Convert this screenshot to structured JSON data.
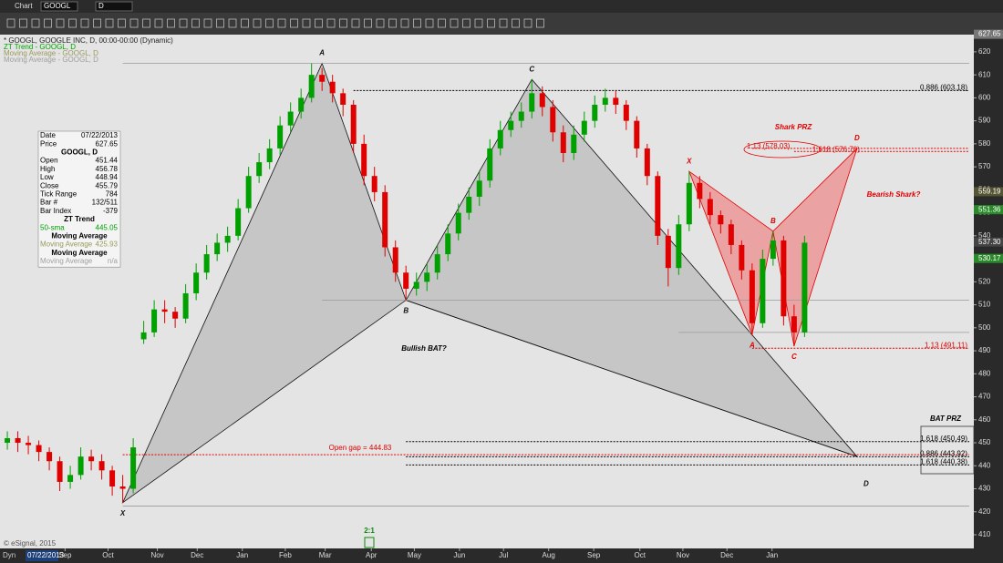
{
  "window": {
    "title": "Chart",
    "symbol": "GOOGL",
    "interval": "D"
  },
  "legend": [
    {
      "text": "* GOOGL, GOOGLE INC, D, 00:00-00:00 (Dynamic)",
      "color": "#222222"
    },
    {
      "text": "ZT Trend - GOOGL, D",
      "color": "#00a000"
    },
    {
      "text": "Moving Average - GOOGL, D",
      "color": "#9a9a5a"
    },
    {
      "text": "Moving Average - GOOGL, D",
      "color": "#a0a0a0"
    }
  ],
  "data_window": {
    "rows": [
      [
        "Date",
        "07/22/2013"
      ],
      [
        "Price",
        627.65
      ],
      [
        "GOOGL, D"
      ],
      [
        "Open",
        451.44
      ],
      [
        "High",
        456.78
      ],
      [
        "Low",
        448.94
      ],
      [
        "Close",
        455.79
      ],
      [
        "Tick Range",
        784
      ],
      [
        "Bar #",
        "132/511"
      ],
      [
        "Bar Index",
        -379
      ],
      [
        "ZT Trend"
      ],
      [
        "50-sma",
        445.05
      ],
      [
        "Moving Average"
      ],
      [
        "Moving Average",
        425.93
      ],
      [
        "Moving Average"
      ],
      [
        "Moving Average",
        "n/a"
      ]
    ]
  },
  "chart_data": {
    "type": "candlestick",
    "candles": {
      "open": [
        450,
        452,
        450,
        449,
        446,
        442,
        433,
        436,
        444,
        442,
        438,
        431,
        430,
        495,
        498,
        508,
        507,
        504,
        515,
        524,
        532,
        537,
        540,
        552,
        566,
        572,
        578,
        588,
        594,
        600,
        610,
        607,
        602,
        597,
        580,
        566,
        559,
        535,
        524,
        517,
        520,
        524,
        532,
        541,
        550,
        557,
        564,
        578,
        586,
        590,
        594,
        602,
        596,
        585,
        576,
        584,
        590,
        597,
        600,
        597,
        590,
        578,
        566,
        540,
        526,
        545,
        563,
        556,
        549,
        545,
        536,
        525,
        502,
        530,
        538,
        505,
        498
      ],
      "high": [
        455,
        455,
        453,
        451,
        448,
        444,
        440,
        448,
        447,
        445,
        440,
        436,
        452,
        503,
        512,
        512,
        509,
        519,
        528,
        536,
        541,
        544,
        556,
        570,
        576,
        582,
        592,
        598,
        604,
        615,
        613,
        610,
        604,
        599,
        584,
        570,
        562,
        538,
        527,
        524,
        528,
        536,
        545,
        554,
        561,
        568,
        582,
        590,
        594,
        598,
        608,
        605,
        599,
        588,
        588,
        594,
        601,
        604,
        603,
        599,
        592,
        580,
        568,
        543,
        549,
        568,
        566,
        559,
        551,
        547,
        538,
        528,
        534,
        542,
        540,
        510,
        540
      ],
      "low": [
        447,
        446,
        445,
        442,
        438,
        429,
        430,
        434,
        438,
        434,
        427,
        424,
        428,
        493,
        496,
        502,
        500,
        502,
        512,
        521,
        529,
        533,
        538,
        550,
        563,
        569,
        575,
        585,
        591,
        598,
        603,
        598,
        592,
        576,
        562,
        555,
        531,
        520,
        512,
        514,
        516,
        521,
        529,
        538,
        547,
        553,
        561,
        575,
        583,
        587,
        591,
        592,
        581,
        572,
        573,
        581,
        587,
        594,
        593,
        586,
        574,
        562,
        536,
        518,
        523,
        542,
        552,
        545,
        541,
        532,
        521,
        497,
        500,
        527,
        501,
        492,
        496
      ],
      "close": [
        452,
        450,
        449,
        446,
        442,
        433,
        436,
        444,
        442,
        438,
        431,
        430,
        448,
        498,
        508,
        507,
        504,
        515,
        524,
        532,
        537,
        540,
        552,
        566,
        572,
        578,
        588,
        594,
        600,
        610,
        607,
        602,
        597,
        580,
        566,
        559,
        535,
        524,
        517,
        520,
        524,
        532,
        541,
        550,
        557,
        564,
        578,
        586,
        590,
        594,
        602,
        596,
        585,
        576,
        584,
        590,
        597,
        600,
        597,
        590,
        578,
        566,
        540,
        526,
        545,
        563,
        556,
        549,
        545,
        536,
        525,
        502,
        530,
        538,
        505,
        498,
        537
      ]
    },
    "up_color": "#00a000",
    "down_color": "#e00000",
    "xlim": [
      -0.7,
      91.7
    ],
    "xticks": [
      {
        "value": 5.5,
        "label": "Sep"
      },
      {
        "value": 9.6,
        "label": "Oct"
      },
      {
        "value": 14.3,
        "label": "Nov"
      },
      {
        "value": 18.1,
        "label": "Dec"
      },
      {
        "value": 22.4,
        "label": "Jan"
      },
      {
        "value": 26.5,
        "label": "Feb"
      },
      {
        "value": 30.3,
        "label": "Mar"
      },
      {
        "value": 34.7,
        "label": "Apr"
      },
      {
        "value": 38.8,
        "label": "May"
      },
      {
        "value": 43.1,
        "label": "Jun"
      },
      {
        "value": 47.3,
        "label": "Jul"
      },
      {
        "value": 51.6,
        "label": "Aug"
      },
      {
        "value": 55.9,
        "label": "Sep"
      },
      {
        "value": 60.3,
        "label": "Oct"
      },
      {
        "value": 64.4,
        "label": "Nov"
      },
      {
        "value": 68.6,
        "label": "Dec"
      },
      {
        "value": 72.9,
        "label": "Jan"
      }
    ],
    "ylim": [
      404.06,
      626.7
    ],
    "yticks": [
      410,
      420,
      430,
      440,
      450,
      460,
      470,
      480,
      490,
      500,
      510,
      520,
      530,
      540,
      550,
      560,
      570,
      580,
      590,
      600,
      610,
      620
    ],
    "price_badges": [
      {
        "value": 627.65,
        "label": "627.65",
        "color": "#777777"
      },
      {
        "value": 559.19,
        "label": "559.19",
        "color": "#555533"
      },
      {
        "value": 551.36,
        "label": "551.36",
        "color": "#2a8a2a"
      },
      {
        "value": 537.3,
        "label": "537.30",
        "color": "#444444"
      },
      {
        "value": 530.17,
        "label": "530.17",
        "color": "#2a8a2a"
      }
    ],
    "levels": [
      {
        "value": 603.18,
        "from": 33,
        "color": "#000000",
        "dashed": true,
        "label": "0.886 (603.18)"
      },
      {
        "value": 578.03,
        "from": 71,
        "color": "#e00000",
        "dashed": true,
        "label": "1.13 (578.03)"
      },
      {
        "value": 576.7,
        "from": 75,
        "color": "#e00000",
        "dashed": true,
        "label": "1.618 (576.70)"
      },
      {
        "value": 491.11,
        "from": 71,
        "color": "#e00000",
        "dashed": true,
        "label": "1.13 (491.11)"
      },
      {
        "value": 450.49,
        "from": 38,
        "color": "#000000",
        "dashed": true,
        "label": "1.618 (450.49)"
      },
      {
        "value": 444.83,
        "from": 11,
        "color": "#e00000",
        "dashed": true
      },
      {
        "value": 443.92,
        "from": 38,
        "color": "#000000",
        "dashed": true,
        "label": "0.886 (443.92)"
      },
      {
        "value": 440.38,
        "from": 38,
        "color": "#000000",
        "dashed": true,
        "label": "1.618 (440.38)"
      },
      {
        "value": 615,
        "from": 11,
        "color": "#9a9a9a",
        "dashed": false
      },
      {
        "value": 512,
        "from": 30,
        "color": "#9a9a9a",
        "dashed": false
      },
      {
        "value": 498,
        "from": 64,
        "color": "#9a9a9a",
        "dashed": false
      },
      {
        "value": 422.5,
        "from": 11,
        "color": "#9a9a9a",
        "dashed": false
      }
    ],
    "patterns": [
      {
        "color": "#111111",
        "fill": "#a8a8a8",
        "points": [
          {
            "label": "X",
            "bar": 11,
            "price": 424
          },
          {
            "label": "A",
            "bar": 30,
            "price": 615
          },
          {
            "label": "B",
            "bar": 38,
            "price": 512
          },
          {
            "label": "C",
            "bar": 50,
            "price": 608
          },
          {
            "label": "D",
            "bar": 81,
            "price": 444
          }
        ]
      },
      {
        "color": "#e00000",
        "fill": "#f06060",
        "points": [
          {
            "label": "X",
            "bar": 65,
            "price": 568
          },
          {
            "label": "A",
            "bar": 71,
            "price": 497
          },
          {
            "label": "B",
            "bar": 73,
            "price": 542
          },
          {
            "label": "C",
            "bar": 75,
            "price": 492
          },
          {
            "label": "D",
            "bar": 81,
            "price": 578
          }
        ]
      }
    ],
    "annotations": [
      {
        "text": "Bullish BAT?",
        "color": "#000000"
      },
      {
        "text": "Shark PRZ",
        "color": "#e00000"
      },
      {
        "text": "Bearish Shark?",
        "color": "#e00000"
      },
      {
        "text": "BAT PRZ",
        "color": "#000000"
      },
      {
        "text": "Open gap = 444.83",
        "color": "#e00000"
      }
    ]
  },
  "footer": {
    "dyn": "Dyn",
    "date": "07/22/2013",
    "ratio": "2:1",
    "copyright": "© eSignal, 2015"
  }
}
